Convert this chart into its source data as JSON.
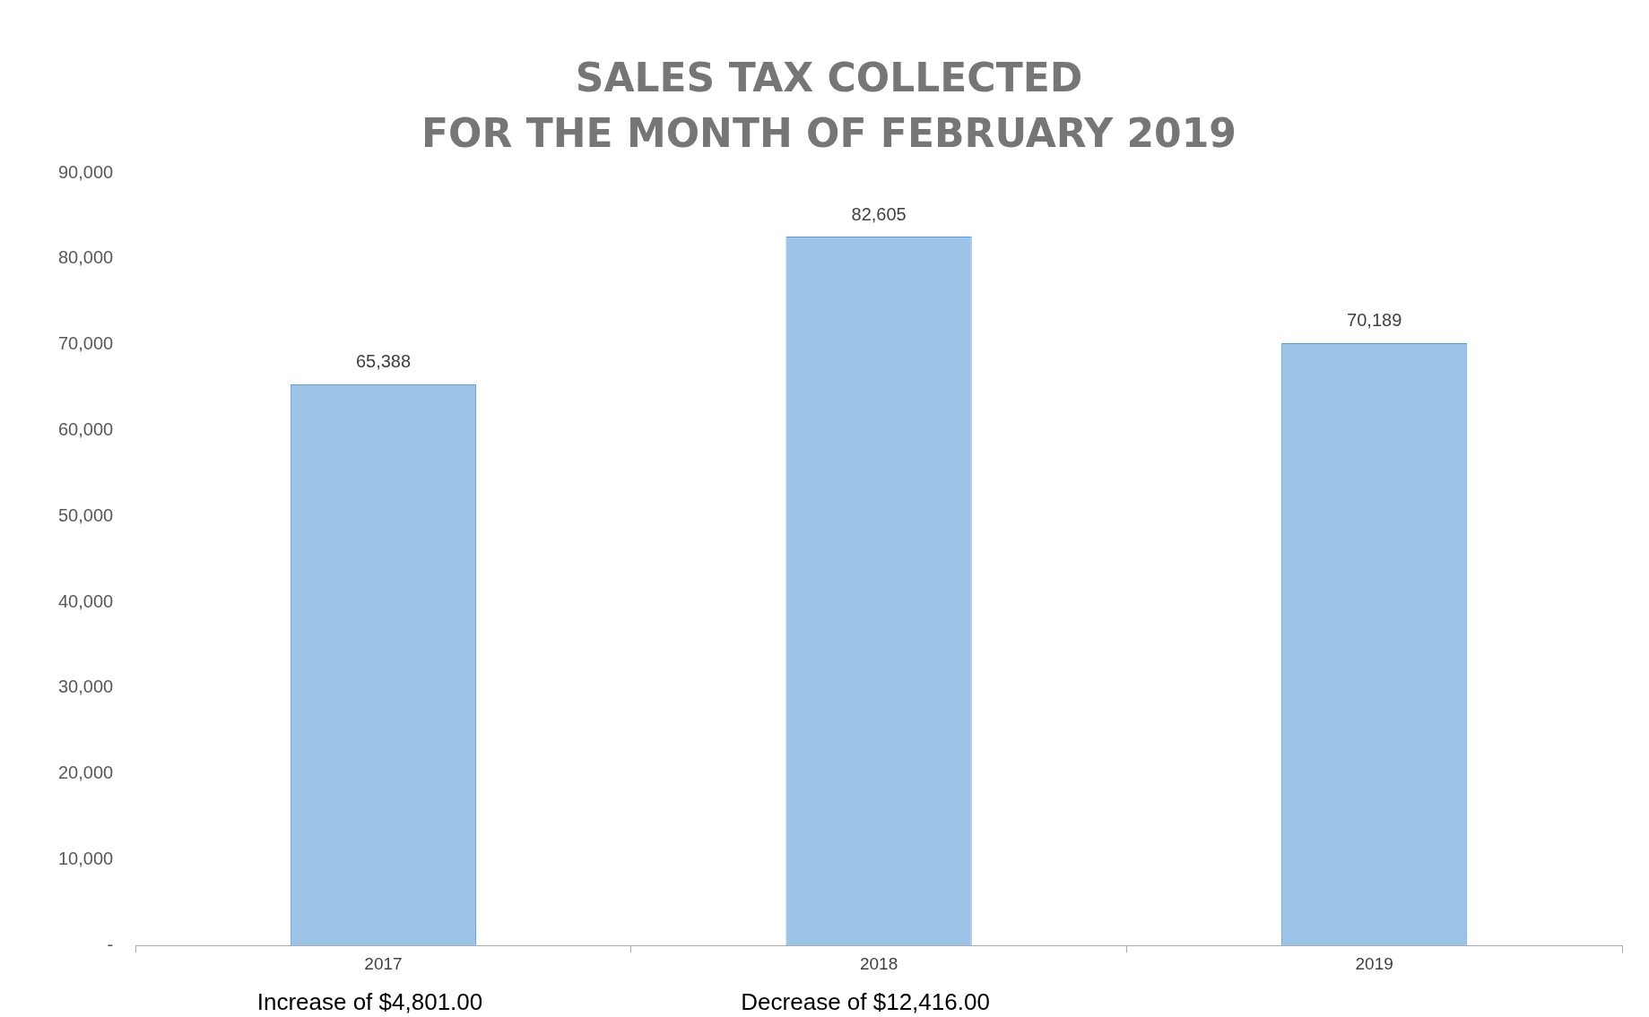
{
  "chart_data": {
    "type": "bar",
    "title": "SALES TAX COLLECTED\nFOR THE MONTH OF FEBRUARY 2019",
    "categories": [
      "2017",
      "2018",
      "2019"
    ],
    "values": [
      65388,
      82605,
      70189
    ],
    "color": "#9dc3e6",
    "ylim": [
      0,
      90000
    ],
    "yticks": [
      {
        "value": 0,
        "label": "-"
      },
      {
        "value": 10000,
        "label": "10,000"
      },
      {
        "value": 20000,
        "label": "20,000"
      },
      {
        "value": 30000,
        "label": "30,000"
      },
      {
        "value": 40000,
        "label": "40,000"
      },
      {
        "value": 50000,
        "label": "50,000"
      },
      {
        "value": 60000,
        "label": "60,000"
      },
      {
        "value": 70000,
        "label": "70,000"
      },
      {
        "value": 80000,
        "label": "80,000"
      },
      {
        "value": 90000,
        "label": "90,000"
      }
    ],
    "grid": false,
    "legend": false,
    "value_labels": [
      "65,388",
      "82,605",
      "70,189"
    ],
    "annotations": [
      "Increase of $4,801.00",
      "Decrease of $12,416.00"
    ]
  }
}
